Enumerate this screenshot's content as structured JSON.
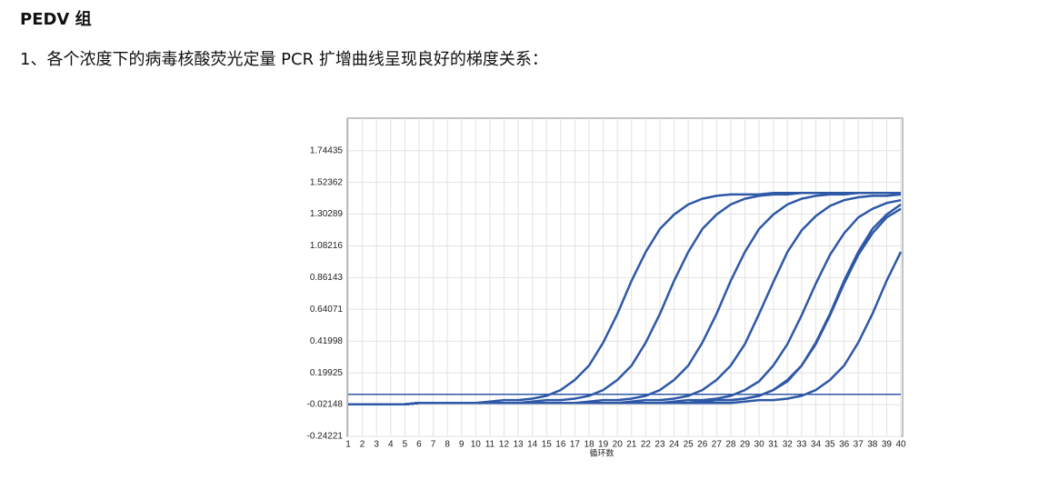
{
  "header": {
    "title": "PEDV 组",
    "text": "1、各个浓度下的病毒核酸荧光定量 PCR 扩增曲线呈现良好的梯度关系："
  },
  "chart_data": {
    "type": "line",
    "x_label": "循环数",
    "color": "#2e58a6",
    "grid": true,
    "x": [
      1,
      2,
      3,
      4,
      5,
      6,
      7,
      8,
      9,
      10,
      11,
      12,
      13,
      14,
      15,
      16,
      17,
      18,
      19,
      20,
      21,
      22,
      23,
      24,
      25,
      26,
      27,
      28,
      29,
      30,
      31,
      32,
      33,
      34,
      35,
      36,
      37,
      38,
      39,
      40
    ],
    "xlim": [
      1,
      40
    ],
    "xticks": [
      1,
      2,
      3,
      4,
      5,
      6,
      7,
      8,
      9,
      10,
      11,
      12,
      13,
      14,
      15,
      16,
      17,
      18,
      19,
      20,
      21,
      22,
      23,
      24,
      25,
      26,
      27,
      28,
      29,
      30,
      31,
      32,
      33,
      34,
      35,
      36,
      37,
      38,
      39,
      40
    ],
    "ylim": [
      -0.24221,
      1.97
    ],
    "yticks": [
      -0.24221,
      -0.02148,
      0.19925,
      0.41998,
      0.64071,
      0.86143,
      1.08216,
      1.30289,
      1.52362,
      1.74435
    ],
    "threshold": 0.05,
    "series": [
      {
        "values": [
          -0.02,
          -0.02,
          -0.02,
          -0.02,
          -0.02,
          -0.01,
          -0.01,
          -0.01,
          -0.01,
          -0.01,
          0.0,
          0.01,
          0.01,
          0.02,
          0.04,
          0.08,
          0.15,
          0.25,
          0.41,
          0.61,
          0.84,
          1.04,
          1.2,
          1.3,
          1.37,
          1.41,
          1.43,
          1.44,
          1.44,
          1.44,
          1.45,
          1.45,
          1.45,
          1.45,
          1.45,
          1.45,
          1.45,
          1.45,
          1.45,
          1.45
        ]
      },
      {
        "values": [
          -0.02,
          -0.02,
          -0.02,
          -0.02,
          -0.02,
          -0.01,
          -0.01,
          -0.01,
          -0.01,
          -0.01,
          -0.01,
          -0.01,
          -0.01,
          0.0,
          0.01,
          0.01,
          0.02,
          0.04,
          0.08,
          0.15,
          0.25,
          0.41,
          0.61,
          0.84,
          1.04,
          1.2,
          1.3,
          1.37,
          1.41,
          1.43,
          1.44,
          1.44,
          1.45,
          1.45,
          1.45,
          1.45,
          1.45,
          1.45,
          1.45,
          1.45
        ]
      },
      {
        "values": [
          -0.02,
          -0.02,
          -0.02,
          -0.02,
          -0.02,
          -0.01,
          -0.01,
          -0.01,
          -0.01,
          -0.01,
          -0.01,
          -0.01,
          -0.01,
          -0.01,
          -0.01,
          -0.01,
          -0.01,
          0.0,
          0.01,
          0.01,
          0.02,
          0.04,
          0.08,
          0.15,
          0.25,
          0.41,
          0.61,
          0.84,
          1.04,
          1.2,
          1.3,
          1.37,
          1.41,
          1.43,
          1.44,
          1.44,
          1.45,
          1.45,
          1.45,
          1.45
        ]
      },
      {
        "values": [
          -0.02,
          -0.02,
          -0.02,
          -0.02,
          -0.02,
          -0.01,
          -0.01,
          -0.01,
          -0.01,
          -0.01,
          -0.01,
          -0.01,
          -0.01,
          -0.01,
          -0.01,
          -0.01,
          -0.01,
          -0.01,
          -0.01,
          -0.01,
          0.0,
          0.01,
          0.01,
          0.02,
          0.04,
          0.08,
          0.15,
          0.25,
          0.4,
          0.61,
          0.83,
          1.04,
          1.19,
          1.29,
          1.36,
          1.4,
          1.42,
          1.43,
          1.43,
          1.44
        ]
      },
      {
        "values": [
          -0.02,
          -0.02,
          -0.02,
          -0.02,
          -0.02,
          -0.01,
          -0.01,
          -0.01,
          -0.01,
          -0.01,
          -0.01,
          -0.01,
          -0.01,
          -0.01,
          -0.01,
          -0.01,
          -0.01,
          -0.01,
          -0.01,
          -0.01,
          -0.01,
          -0.01,
          -0.01,
          0.0,
          0.01,
          0.01,
          0.02,
          0.04,
          0.08,
          0.14,
          0.25,
          0.4,
          0.6,
          0.82,
          1.02,
          1.17,
          1.28,
          1.34,
          1.38,
          1.4
        ]
      },
      {
        "values": [
          -0.02,
          -0.02,
          -0.02,
          -0.02,
          -0.02,
          -0.01,
          -0.01,
          -0.01,
          -0.01,
          -0.01,
          -0.01,
          -0.01,
          -0.01,
          -0.01,
          -0.01,
          -0.01,
          -0.01,
          -0.01,
          -0.01,
          -0.01,
          -0.01,
          -0.01,
          -0.01,
          -0.01,
          -0.01,
          0.0,
          0.01,
          0.01,
          0.02,
          0.04,
          0.08,
          0.15,
          0.25,
          0.41,
          0.61,
          0.84,
          1.04,
          1.2,
          1.3,
          1.37
        ]
      },
      {
        "values": [
          -0.02,
          -0.02,
          -0.02,
          -0.02,
          -0.02,
          -0.01,
          -0.01,
          -0.01,
          -0.01,
          -0.01,
          -0.01,
          -0.01,
          -0.01,
          -0.01,
          -0.01,
          -0.01,
          -0.01,
          -0.01,
          -0.01,
          -0.01,
          -0.01,
          -0.01,
          -0.01,
          -0.01,
          -0.01,
          0.0,
          0.01,
          0.01,
          0.02,
          0.04,
          0.08,
          0.14,
          0.25,
          0.4,
          0.6,
          0.82,
          1.02,
          1.17,
          1.28,
          1.34
        ]
      },
      {
        "values": [
          -0.02,
          -0.02,
          -0.02,
          -0.02,
          -0.02,
          -0.01,
          -0.01,
          -0.01,
          -0.01,
          -0.01,
          -0.01,
          -0.01,
          -0.01,
          -0.01,
          -0.01,
          -0.01,
          -0.01,
          -0.01,
          -0.01,
          -0.01,
          -0.01,
          -0.01,
          -0.01,
          -0.01,
          -0.01,
          -0.01,
          -0.01,
          -0.01,
          0.0,
          0.01,
          0.01,
          0.02,
          0.04,
          0.08,
          0.15,
          0.25,
          0.41,
          0.61,
          0.84,
          1.04
        ]
      }
    ]
  }
}
